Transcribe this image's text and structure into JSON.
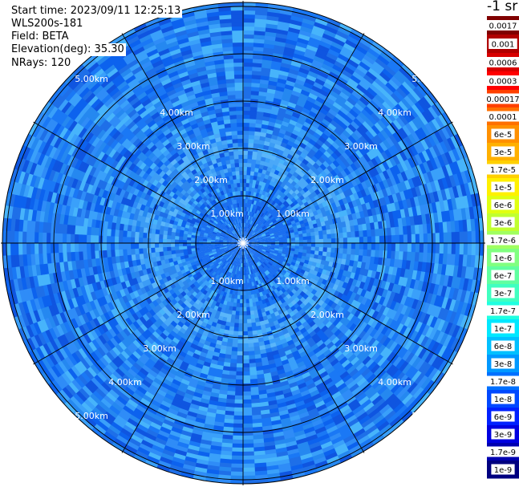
{
  "info": {
    "start_time": "Start time: 2023/09/11 12:25:13",
    "instrument": "WLS200s-181",
    "field": "Field: BETA",
    "elevation": "Elevation(deg): 35.30",
    "nrays": "NRays: 120"
  },
  "colorbar": {
    "title": "-1 sr",
    "labels": [
      "0.0017",
      "0.001",
      "0.0006",
      "0.0003",
      "0.00017",
      "0.0001",
      "6e-5",
      "3e-5",
      "1.7e-5",
      "1e-5",
      "6e-6",
      "3e-6",
      "1.7e-6",
      "1e-6",
      "6e-7",
      "3e-7",
      "1.7e-7",
      "1e-7",
      "6e-8",
      "3e-8",
      "1.7e-8",
      "1e-8",
      "6e-9",
      "3e-9",
      "1.7e-9",
      "1e-9"
    ],
    "colors": [
      "#800000",
      "#b00000",
      "#d80000",
      "#ff0000",
      "#ff4000",
      "#ff7000",
      "#ff9000",
      "#ffb000",
      "#ffd000",
      "#fff000",
      "#e0ff10",
      "#c0ff30",
      "#a0ff60",
      "#80ff80",
      "#60ffa0",
      "#40ffc0",
      "#20ffe0",
      "#00e8ff",
      "#00c0ff",
      "#0098ff",
      "#0070ff",
      "#0048ff",
      "#0020ff",
      "#0000e0",
      "#0000b0",
      "#000080"
    ]
  },
  "chart_data": {
    "type": "heatmap",
    "projection": "polar (PPI)",
    "field": "BETA",
    "nrays": 120,
    "range_rings_km": [
      "1.00km",
      "2.00km",
      "3.00km",
      "4.00km",
      "5.00km"
    ],
    "max_range_km": 6.4,
    "azimuth_spokes": 12,
    "value_range": "approx. 1e-8 to 1e-7 (mostly blue/light-blue)"
  }
}
